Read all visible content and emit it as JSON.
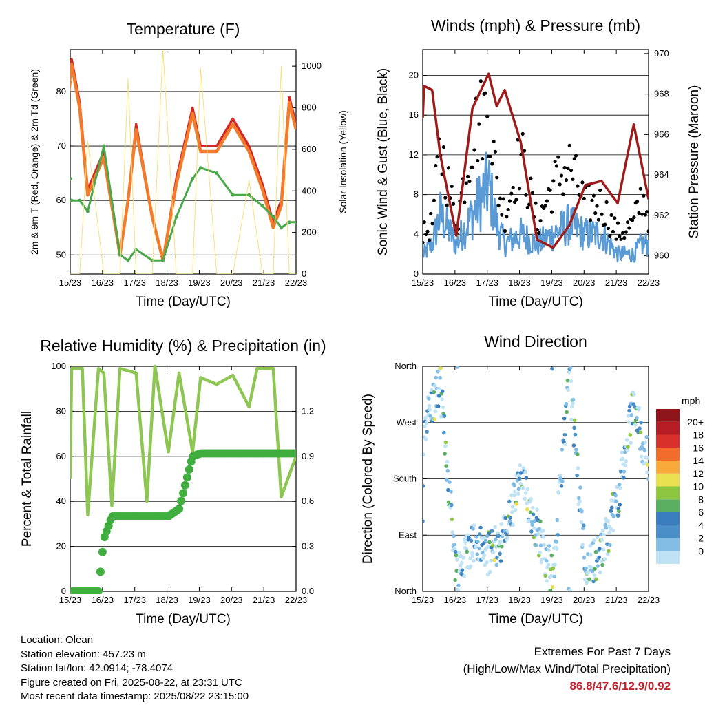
{
  "x_ticks": [
    "15/23",
    "16/23",
    "17/23",
    "18/23",
    "19/23",
    "20/23",
    "21/23",
    "22/23"
  ],
  "charts": {
    "temperature": {
      "title": "Temperature (F)",
      "xlabel": "Time (Day/UTC)",
      "ylabel_left": "2m & 9m T (Red, Orange) & 2m Td (Green)",
      "ylabel_right": "Solar Insolation (Yellow)",
      "left_ticks": [
        "50",
        "60",
        "70",
        "80"
      ],
      "right_ticks": [
        "0",
        "200",
        "400",
        "600",
        "800",
        "1000"
      ]
    },
    "winds": {
      "title": "Winds (mph) & Pressure (mb)",
      "xlabel": "Time (Day/UTC)",
      "ylabel_left": "Sonic Wind & Gust (Blue, Black)",
      "ylabel_right": "Station Pressure (Maroon)",
      "left_ticks": [
        "0",
        "4",
        "8",
        "12",
        "16",
        "20"
      ],
      "right_ticks": [
        "960",
        "962",
        "964",
        "966",
        "968",
        "970"
      ]
    },
    "humidity": {
      "title": "Relative Humidity (%) & Precipitation (in)",
      "xlabel": "Time (Day/UTC)",
      "ylabel_left": "Percent & Total Rainfall",
      "left_ticks": [
        "0",
        "20",
        "40",
        "60",
        "80",
        "100"
      ],
      "right_ticks": [
        "0.0",
        "0.3",
        "0.6",
        "0.9",
        "1.2"
      ]
    },
    "direction": {
      "title": "Wind Direction",
      "xlabel": "Time (Day/UTC)",
      "ylabel_left": "Direction (Colored By Speed)",
      "dir_ticks": [
        "North",
        "East",
        "South",
        "West",
        "North"
      ],
      "legend_title": "mph",
      "legend_labels": [
        "0",
        "2",
        "4",
        "6",
        "8",
        "10",
        "12",
        "14",
        "16",
        "18",
        "20+"
      ],
      "legend_colors": [
        "#bfe2f5",
        "#82bde6",
        "#4a8fc7",
        "#3b7ec0",
        "#5ab060",
        "#8cc63f",
        "#e8e04e",
        "#f7a93b",
        "#f26c2b",
        "#d9302c",
        "#b61c24",
        "#8e1519"
      ]
    }
  },
  "chart_data": [
    {
      "type": "line",
      "title": "Temperature (F)",
      "xlabel": "Time (Day/UTC)",
      "ylabel": "2m & 9m T (Red, Orange) & 2m Td (Green)",
      "ylim": [
        46.5,
        87.7
      ],
      "y2label": "Solar Insolation (Yellow)",
      "y2lim": [
        0,
        1080
      ],
      "x": [
        "15/23",
        "15/12",
        "16/00",
        "16/06",
        "16/12",
        "17/00",
        "17/12",
        "17/18",
        "18/00",
        "18/12",
        "18/20",
        "19/06",
        "19/18",
        "20/00",
        "20/12",
        "21/00",
        "21/12",
        "21/22",
        "22/06",
        "22/12",
        "22/18",
        "22/23"
      ],
      "series": [
        {
          "name": "2m T",
          "color": "#d42a23",
          "values": [
            83,
            61,
            86,
            78,
            62,
            69,
            50,
            60,
            74,
            57,
            49,
            64,
            77,
            70,
            70,
            75,
            70,
            63,
            56,
            60,
            79,
            74
          ]
        },
        {
          "name": "9m T",
          "color": "#f27c2b",
          "values": [
            82,
            60,
            85,
            77,
            61,
            68,
            50,
            60,
            73,
            57,
            49,
            63,
            76,
            69,
            69,
            74,
            69,
            62,
            55,
            59,
            78,
            73
          ]
        },
        {
          "name": "2m Td",
          "color": "#4aa84a",
          "values": [
            64,
            58,
            60,
            60,
            58,
            70,
            50,
            49,
            51,
            49,
            49,
            57,
            64,
            66,
            65,
            61,
            61,
            59,
            57,
            55,
            56,
            56
          ]
        },
        {
          "name": "Solar Insolation",
          "color": "#f7e07a",
          "axis": "right",
          "values": [
            0,
            0,
            0,
            0,
            640,
            0,
            0,
            940,
            0,
            0,
            1080,
            0,
            0,
            990,
            0,
            0,
            450,
            0,
            0,
            1000,
            0,
            0
          ]
        }
      ]
    },
    {
      "type": "line",
      "title": "Winds (mph) & Pressure (mb)",
      "xlabel": "Time (Day/UTC)",
      "ylabel": "Sonic Wind & Gust (Blue, Black)",
      "ylim": [
        0,
        22.6
      ],
      "y2label": "Station Pressure (Maroon)",
      "y2lim": [
        959.1,
        970.2
      ],
      "x": [
        "15/23",
        "16/00",
        "16/06",
        "16/12",
        "17/00",
        "17/12",
        "18/00",
        "18/06",
        "18/12",
        "19/00",
        "19/12",
        "20/00",
        "20/12",
        "21/00",
        "21/12",
        "22/00",
        "22/12",
        "22/18",
        "22/23"
      ],
      "series": [
        {
          "name": "Station Pressure",
          "color": "#9e1b1b",
          "axis": "right",
          "values": [
            966.8,
            968.4,
            968.2,
            965,
            961,
            967.3,
            969,
            967.4,
            968.2,
            965.6,
            960.8,
            960.4,
            961.5,
            963.5,
            963.7,
            962.6,
            966.5,
            964.5,
            962.8
          ]
        },
        {
          "name": "Sonic Wind",
          "color": "#5b9bd5",
          "values": [
            2,
            2,
            3,
            6,
            3,
            6,
            9,
            5,
            3,
            4,
            3,
            4,
            5,
            4,
            4,
            2,
            2,
            3,
            3
          ]
        },
        {
          "name": "Gust",
          "color": "#000000",
          "values": [
            4,
            4,
            5,
            13,
            5,
            14,
            17,
            9,
            6,
            12,
            5,
            9,
            11,
            7,
            7,
            4,
            5,
            8,
            6
          ]
        }
      ]
    },
    {
      "type": "line",
      "title": "Relative Humidity (%) & Precipitation (in)",
      "xlabel": "Time (Day/UTC)",
      "ylabel": "Percent & Total Rainfall",
      "ylim": [
        0,
        100
      ],
      "y2lim": [
        0,
        1.5
      ],
      "x": [
        "15/23",
        "16/00",
        "16/08",
        "16/12",
        "16/20",
        "17/00",
        "17/06",
        "17/12",
        "18/00",
        "18/08",
        "18/14",
        "19/00",
        "19/08",
        "19/18",
        "20/00",
        "20/12",
        "21/00",
        "21/12",
        "21/18",
        "22/06",
        "22/12",
        "22/23"
      ],
      "series": [
        {
          "name": "Relative Humidity",
          "color": "#8dc653",
          "values": [
            50,
            99,
            99,
            34,
            99,
            97,
            38,
            99,
            97,
            40,
            100,
            62,
            97,
            62,
            95,
            92,
            96,
            82,
            99,
            99,
            42,
            60
          ]
        },
        {
          "name": "Total Precipitation",
          "color": "#3fae3f",
          "axis": "right",
          "values": [
            0,
            0,
            0,
            0,
            0,
            0.35,
            0.5,
            0.5,
            0.5,
            0.5,
            0.5,
            0.5,
            0.55,
            0.9,
            0.92,
            0.92,
            0.92,
            0.92,
            0.92,
            0.92,
            0.92,
            0.92
          ]
        }
      ]
    },
    {
      "type": "scatter",
      "title": "Wind Direction",
      "xlabel": "Time (Day/UTC)",
      "ylabel": "Direction (Colored By Speed)",
      "ylim": [
        0,
        360
      ],
      "yticks": [
        "North",
        "East",
        "South",
        "West",
        "North"
      ],
      "legend": {
        "title": "mph",
        "labels": [
          "0",
          "2",
          "4",
          "6",
          "8",
          "10",
          "12",
          "14",
          "16",
          "18",
          "20+"
        ]
      },
      "x": [
        "15/23",
        "16/00",
        "16/12",
        "17/00",
        "17/12",
        "18/00",
        "18/12",
        "19/00",
        "19/12",
        "20/00",
        "20/12",
        "21/00",
        "21/12",
        "22/00",
        "22/12",
        "22/23"
      ],
      "series": [
        {
          "name": "Wind Direction",
          "values": [
            80,
            270,
            330,
            30,
            80,
            60,
            90,
            180,
            100,
            20,
            350,
            40,
            60,
            150,
            300,
            200
          ]
        }
      ]
    }
  ],
  "footer": {
    "location": "Location: Olean",
    "elevation": "Station elevation: 457.23 m",
    "latlon": "Station lat/lon: 42.0914; -78.4074",
    "created": "Figure created on Fri, 2025-08-22, at 23:31 UTC",
    "recent": "Most recent data timestamp: 2025/08/22 23:15:00",
    "extremes_title": "Extremes For Past 7 Days",
    "extremes_subtitle": "(High/Low/Max Wind/Total Precipitation)",
    "extremes_values": "86.8/47.6/12.9/0.92"
  }
}
